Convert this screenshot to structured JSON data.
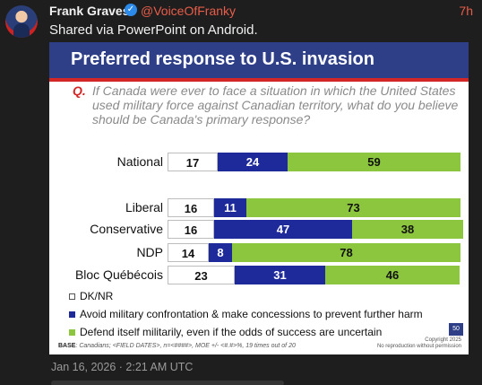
{
  "post": {
    "author": "Frank Graves",
    "handle": "@VoiceOfFranky",
    "time": "7h",
    "text": "Shared via PowerPoint on Android.",
    "date": "Jan 16, 2026 · 2:21 AM UTC",
    "verified_icon": "check"
  },
  "slide": {
    "title": "Preferred response to U.S. invasion",
    "q_label": "Q.",
    "question": "If Canada were ever to face a situation in which the United States used military force against Canadian territory, what do you believe should be Canada's primary response?",
    "rows": [
      {
        "label": "National",
        "dk": "17",
        "avoid": "24",
        "defend": "59"
      },
      {
        "label": "Liberal",
        "dk": "16",
        "avoid": "11",
        "defend": "73"
      },
      {
        "label": "Conservative",
        "dk": "16",
        "avoid": "47",
        "defend": "38"
      },
      {
        "label": "NDP",
        "dk": "14",
        "avoid": "8",
        "defend": "78"
      },
      {
        "label": "Bloc Québécois",
        "dk": "23",
        "avoid": "31",
        "defend": "46"
      }
    ],
    "legend": {
      "dk": "DK/NR",
      "avoid": "Avoid military confrontation & make concessions to prevent further harm",
      "defend": "Defend itself militarily, even if the odds of success are uncertain"
    },
    "base_label": "BASE",
    "base_text": ": Canadians; <FIELD DATES>, n=<####>, MOE +/- <#.#>%, 19 times out of 20",
    "page_number": "50",
    "copyright": "Copyright 2025",
    "copyright_note": "No reproduction without permission",
    "colors": {
      "dk": "#ffffff",
      "avoid": "#1e2a9a",
      "defend": "#8cc63f",
      "title_bar": "#2e3f88",
      "accent": "#d32626"
    }
  }
}
